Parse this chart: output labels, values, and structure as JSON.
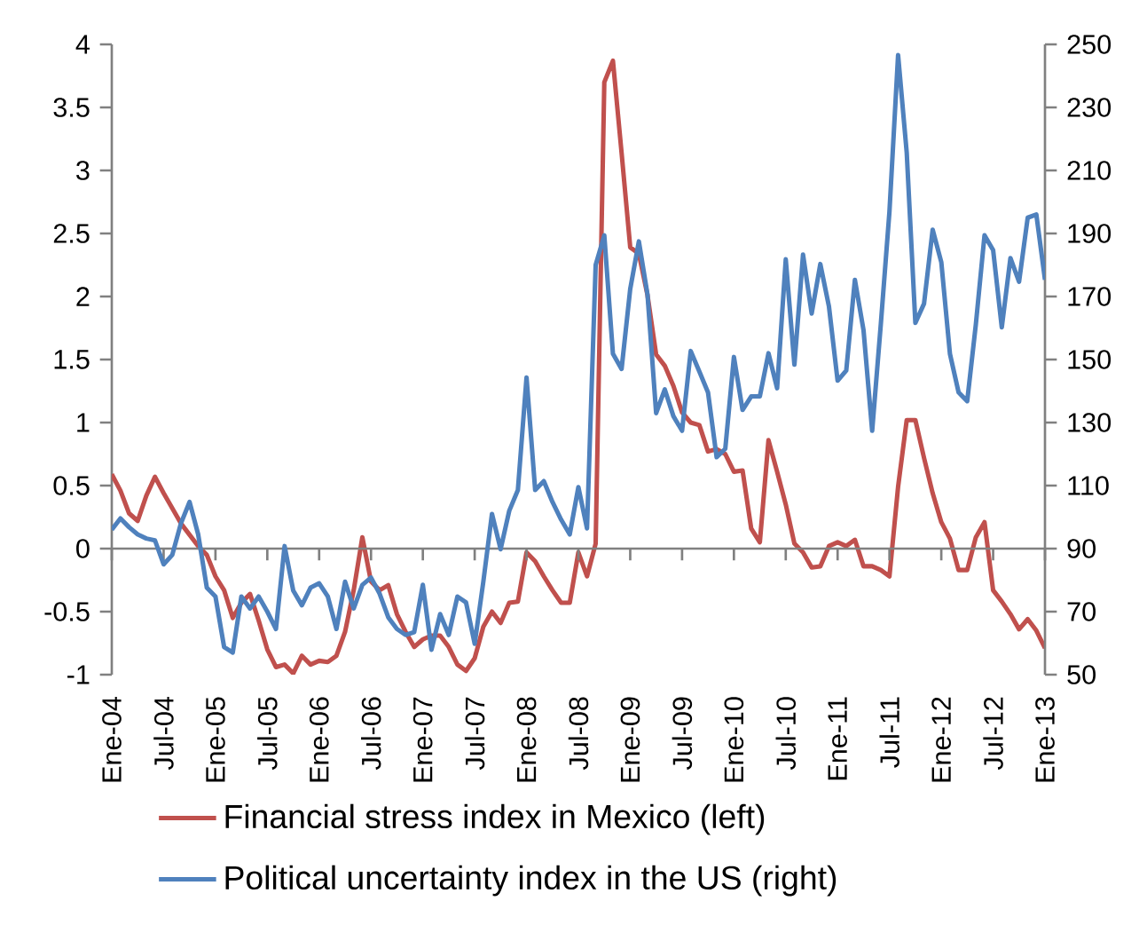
{
  "chart_data": {
    "type": "line",
    "categories": [
      "Ene-04",
      null,
      null,
      null,
      null,
      null,
      "Jul-04",
      null,
      null,
      null,
      null,
      null,
      "Ene-05",
      null,
      null,
      null,
      null,
      null,
      "Jul-05",
      null,
      null,
      null,
      null,
      null,
      "Ene-06",
      null,
      null,
      null,
      null,
      null,
      "Jul-06",
      null,
      null,
      null,
      null,
      null,
      "Ene-07",
      null,
      null,
      null,
      null,
      null,
      "Jul-07",
      null,
      null,
      null,
      null,
      null,
      "Ene-08",
      null,
      null,
      null,
      null,
      null,
      "Jul-08",
      null,
      null,
      null,
      null,
      null,
      "Ene-09",
      null,
      null,
      null,
      null,
      null,
      "Jul-09",
      null,
      null,
      null,
      null,
      null,
      "Ene-10",
      null,
      null,
      null,
      null,
      null,
      "Jul-10",
      null,
      null,
      null,
      null,
      null,
      "Ene-11",
      null,
      null,
      null,
      null,
      null,
      "Jul-11",
      null,
      null,
      null,
      null,
      null,
      "Ene-12",
      null,
      null,
      null,
      null,
      null,
      "Jul-12",
      null,
      null,
      null,
      null,
      null,
      "Ene-13"
    ],
    "series": [
      {
        "name": "Financial stress index in Mexico (left)",
        "color": "#c0504d",
        "values": [
          0.59,
          0.46,
          0.28,
          0.22,
          0.42,
          0.57,
          0.44,
          0.32,
          0.2,
          0.11,
          0.02,
          -0.05,
          -0.22,
          -0.33,
          -0.55,
          -0.43,
          -0.36,
          -0.57,
          -0.8,
          -0.94,
          -0.92,
          -0.99,
          -0.85,
          -0.92,
          -0.89,
          -0.9,
          -0.85,
          -0.66,
          -0.33,
          0.09,
          -0.26,
          -0.33,
          -0.29,
          -0.52,
          -0.66,
          -0.78,
          -0.72,
          -0.69,
          -0.69,
          -0.78,
          -0.92,
          -0.97,
          -0.87,
          -0.62,
          -0.5,
          -0.59,
          -0.43,
          -0.42,
          -0.03,
          -0.1,
          -0.22,
          -0.33,
          -0.43,
          -0.43,
          -0.03,
          -0.22,
          0.04,
          3.7,
          3.87,
          3.14,
          2.39,
          2.34,
          2.01,
          1.54,
          1.45,
          1.29,
          1.08,
          1.0,
          0.98,
          0.77,
          0.79,
          0.75,
          0.61,
          0.62,
          0.16,
          0.05,
          0.86,
          0.61,
          0.35,
          0.04,
          -0.03,
          -0.15,
          -0.14,
          0.02,
          0.05,
          0.02,
          0.07,
          -0.14,
          -0.14,
          -0.17,
          -0.22,
          0.49,
          1.02,
          1.02,
          0.72,
          0.44,
          0.21,
          0.08,
          -0.17,
          -0.17,
          0.09,
          0.21,
          -0.33,
          -0.42,
          -0.52,
          -0.64,
          -0.56,
          -0.65,
          -0.79
        ]
      },
      {
        "name": "Political uncertainty index in the US (right)",
        "color": "#4f81bd",
        "axis": "y2",
        "values": [
          96,
          99.6,
          96.8,
          94.5,
          93.2,
          92.6,
          85,
          88,
          98,
          104.8,
          94.5,
          77.6,
          74.8,
          58.8,
          57,
          74.8,
          71,
          74.8,
          70,
          64.5,
          90.8,
          76.7,
          72,
          77.6,
          79,
          74.8,
          64.5,
          79.5,
          71,
          78.5,
          80.8,
          75.7,
          68.2,
          64.5,
          62.6,
          63.5,
          78.5,
          57.9,
          69.2,
          62.6,
          74.8,
          72.9,
          59.8,
          79.5,
          101,
          89.8,
          102,
          108.6,
          144.3,
          108.6,
          111.4,
          104.8,
          99.2,
          94.5,
          109.5,
          96.4,
          180,
          189.4,
          151.8,
          147,
          172.4,
          187.5,
          170.6,
          133,
          140.5,
          132,
          127.4,
          152.7,
          146.2,
          139.6,
          119,
          121.7,
          150.8,
          134,
          138.3,
          138.3,
          152,
          140.9,
          181.8,
          148.4,
          183.3,
          164.6,
          180.3,
          166.8,
          143.3,
          146.5,
          175.3,
          159.3,
          127.4,
          161.2,
          196.9,
          246.6,
          215.6,
          161.6,
          167.7,
          191.2,
          180.9,
          151.8,
          139.6,
          136.8,
          161.2,
          189.4,
          184.7,
          160.2,
          182.2,
          174.7,
          195,
          196,
          175.3
        ]
      }
    ],
    "ylim": [
      -1,
      4
    ],
    "yticks": [
      -1,
      -0.5,
      0,
      0.5,
      1,
      1.5,
      2,
      2.5,
      3,
      3.5,
      4
    ],
    "y2lim": [
      50,
      250
    ],
    "y2ticks": [
      50,
      70,
      90,
      110,
      130,
      150,
      170,
      190,
      210,
      230,
      250
    ],
    "legend": "bottom"
  }
}
